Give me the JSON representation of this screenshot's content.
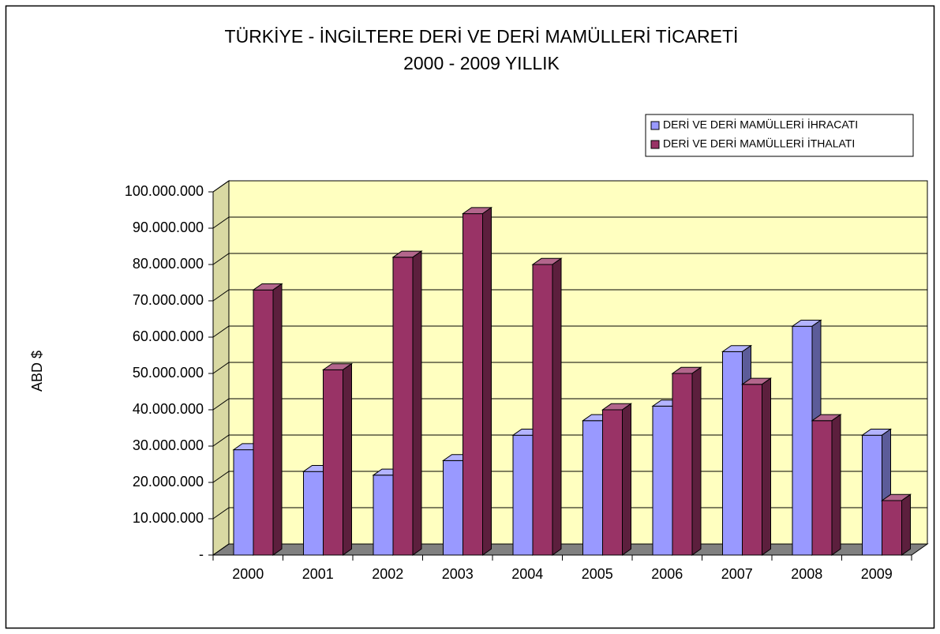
{
  "chart_data": {
    "type": "bar3d",
    "title": "TÜRKİYE - İNGİLTERE DERİ VE DERİ MAMÜLLERİ TİCARETİ",
    "subtitle": "2000 - 2009 YILLIK",
    "y_label": "ABD $",
    "categories": [
      "2000",
      "2001",
      "2002",
      "2003",
      "2004",
      "2005",
      "2006",
      "2007",
      "2008",
      "2009"
    ],
    "series": [
      {
        "name": "DERİ VE DERİ MAMÜLLERİ İHRACATI",
        "color": "#9999ff",
        "values": [
          29000000,
          23000000,
          22000000,
          26000000,
          33000000,
          37000000,
          41000000,
          56000000,
          63000000,
          33000000
        ]
      },
      {
        "name": "DERİ VE DERİ MAMÜLLERİ İTHALATI",
        "color": "#993366",
        "values": [
          73000000,
          51000000,
          82000000,
          94000000,
          80000000,
          40000000,
          50000000,
          47000000,
          37000000,
          15000000
        ]
      }
    ],
    "ylim": [
      0,
      100000000
    ],
    "yticks": [
      {
        "value": 0,
        "label": "-"
      },
      {
        "value": 10000000,
        "label": "10.000.000"
      },
      {
        "value": 20000000,
        "label": "20.000.000"
      },
      {
        "value": 30000000,
        "label": "30.000.000"
      },
      {
        "value": 40000000,
        "label": "40.000.000"
      },
      {
        "value": 50000000,
        "label": "50.000.000"
      },
      {
        "value": 60000000,
        "label": "60.000.000"
      },
      {
        "value": 70000000,
        "label": "70.000.000"
      },
      {
        "value": 80000000,
        "label": "80.000.000"
      },
      {
        "value": 90000000,
        "label": "90.000.000"
      },
      {
        "value": 100000000,
        "label": "100.000.000"
      }
    ],
    "grid": true,
    "legend": "top-right",
    "wall_color": "#ffffc0",
    "floor_color": "#808080"
  }
}
